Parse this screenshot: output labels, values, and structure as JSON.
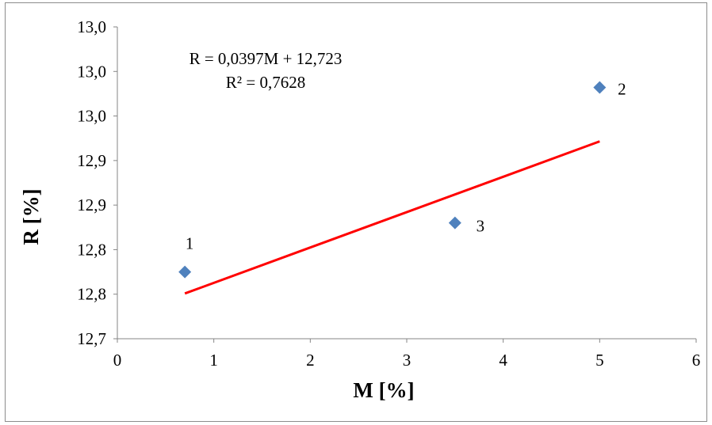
{
  "chart_data": {
    "type": "scatter",
    "xlabel": "M [%]",
    "ylabel": "R [%]",
    "xlim": [
      0,
      6
    ],
    "ylim": [
      12.7,
      13.05
    ],
    "x_ticks": [
      0,
      1,
      2,
      3,
      4,
      5,
      6
    ],
    "x_tick_labels": [
      "0",
      "1",
      "2",
      "3",
      "4",
      "5",
      "6"
    ],
    "y_ticks": [
      12.7,
      12.75,
      12.8,
      12.85,
      12.9,
      12.95,
      13.0,
      13.05
    ],
    "y_tick_labels": [
      "12,7",
      "12,8",
      "12,8",
      "12,9",
      "12,9",
      "13,0",
      "13,0",
      "13,0"
    ],
    "grid": false,
    "points": [
      {
        "label": "1",
        "x": 0.7,
        "y": 12.775
      },
      {
        "label": "2",
        "x": 5.0,
        "y": 12.982
      },
      {
        "label": "3",
        "x": 3.5,
        "y": 12.83
      }
    ],
    "marker_color": "#4f81bd",
    "trendline": {
      "x_start": 0.7,
      "x_end": 5.0,
      "slope": 0.0397,
      "intercept": 12.723,
      "color": "#ff0000",
      "equation": "R = 0,0397M + 12,723",
      "r_squared": "R² = 0,7628"
    }
  }
}
